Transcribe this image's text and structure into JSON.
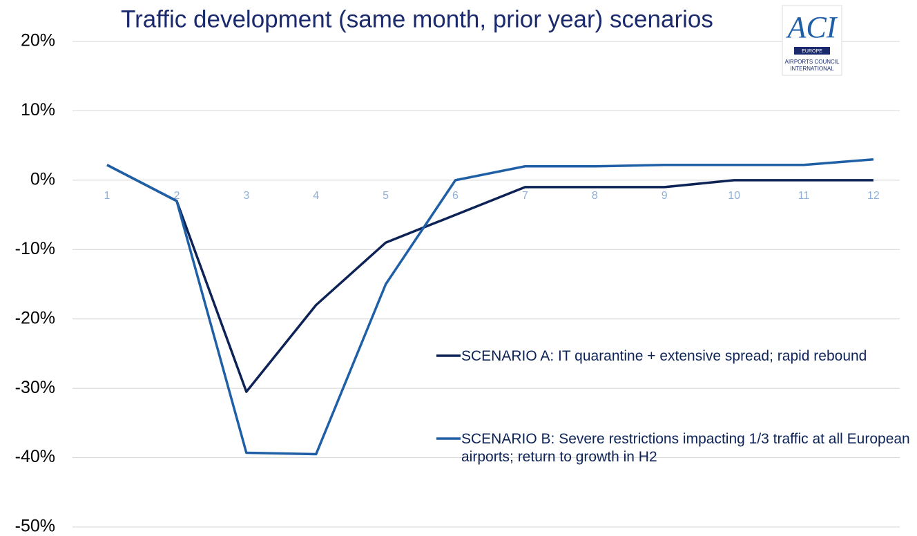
{
  "chart_data": {
    "type": "line",
    "title": "Traffic development (same month, prior year) scenarios",
    "categories": [
      "1",
      "2",
      "3",
      "4",
      "5",
      "6",
      "7",
      "8",
      "9",
      "10",
      "11",
      "12"
    ],
    "series": [
      {
        "name": "SCENARIO A: IT quarantine + extensive spread; rapid rebound",
        "color": "#0d2356",
        "values": [
          2.2,
          -3,
          -30.5,
          -18,
          -9,
          -5,
          -1,
          -1,
          -1,
          0,
          0,
          0
        ]
      },
      {
        "name": "SCENARIO B: Severe restrictions impacting 1/3 traffic at all European airports; return to growth in H2",
        "color": "#1f5fa6",
        "values": [
          2.2,
          -3,
          -39.3,
          -39.5,
          -15,
          0,
          2,
          2,
          2.2,
          2.2,
          2.2,
          3
        ]
      }
    ],
    "ylim": [
      -50,
      20
    ],
    "yticks": [
      {
        "value": -50,
        "label": "-50%"
      },
      {
        "value": -40,
        "label": "-40%"
      },
      {
        "value": -30,
        "label": "-30%"
      },
      {
        "value": -20,
        "label": "-20%"
      },
      {
        "value": -10,
        "label": "-10%"
      },
      {
        "value": 0,
        "label": "0%"
      },
      {
        "value": 10,
        "label": "10%"
      },
      {
        "value": 20,
        "label": "20%"
      }
    ],
    "grid": true
  },
  "logo": {
    "mark": "ACI",
    "region": "EUROPE",
    "line1": "AIRPORTS COUNCIL",
    "line2": "INTERNATIONAL"
  }
}
